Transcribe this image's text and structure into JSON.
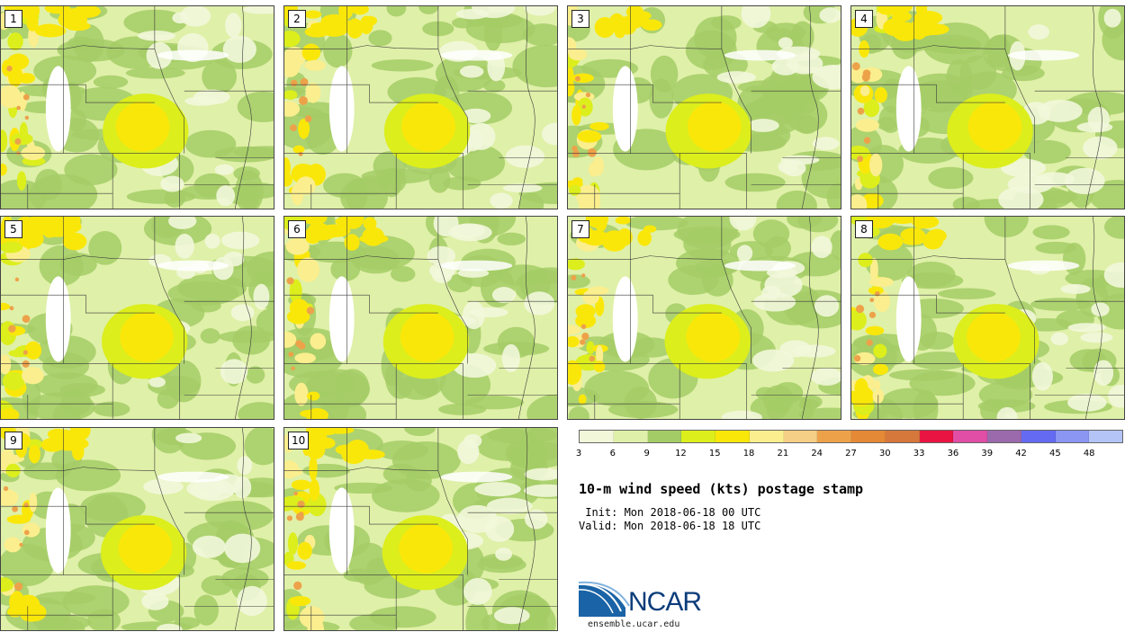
{
  "panels": [
    {
      "label": "1"
    },
    {
      "label": "2"
    },
    {
      "label": "3"
    },
    {
      "label": "4"
    },
    {
      "label": "5"
    },
    {
      "label": "6"
    },
    {
      "label": "7"
    },
    {
      "label": "8"
    },
    {
      "label": "9"
    },
    {
      "label": "10"
    }
  ],
  "colorbar": {
    "colors": [
      "#f2f7da",
      "#dff0a8",
      "#a4cc66",
      "#dcee1c",
      "#fae70a",
      "#fbee8e",
      "#f6cf86",
      "#eda24a",
      "#e48936",
      "#d6783c",
      "#ea1442",
      "#e04ea6",
      "#9a6aac",
      "#646af2",
      "#8a96f2",
      "#b4c4f6"
    ],
    "ticks": [
      "3",
      "6",
      "9",
      "12",
      "15",
      "18",
      "21",
      "24",
      "27",
      "30",
      "33",
      "36",
      "39",
      "42",
      "45",
      "48"
    ]
  },
  "title": "10-m wind speed (kts) postage stamp",
  "init_line": " Init: Mon 2018-06-18 00 UTC",
  "valid_line": "Valid: Mon 2018-06-18 18 UTC",
  "logo": {
    "text": "NCAR",
    "url": "ensemble.ucar.edu"
  }
}
